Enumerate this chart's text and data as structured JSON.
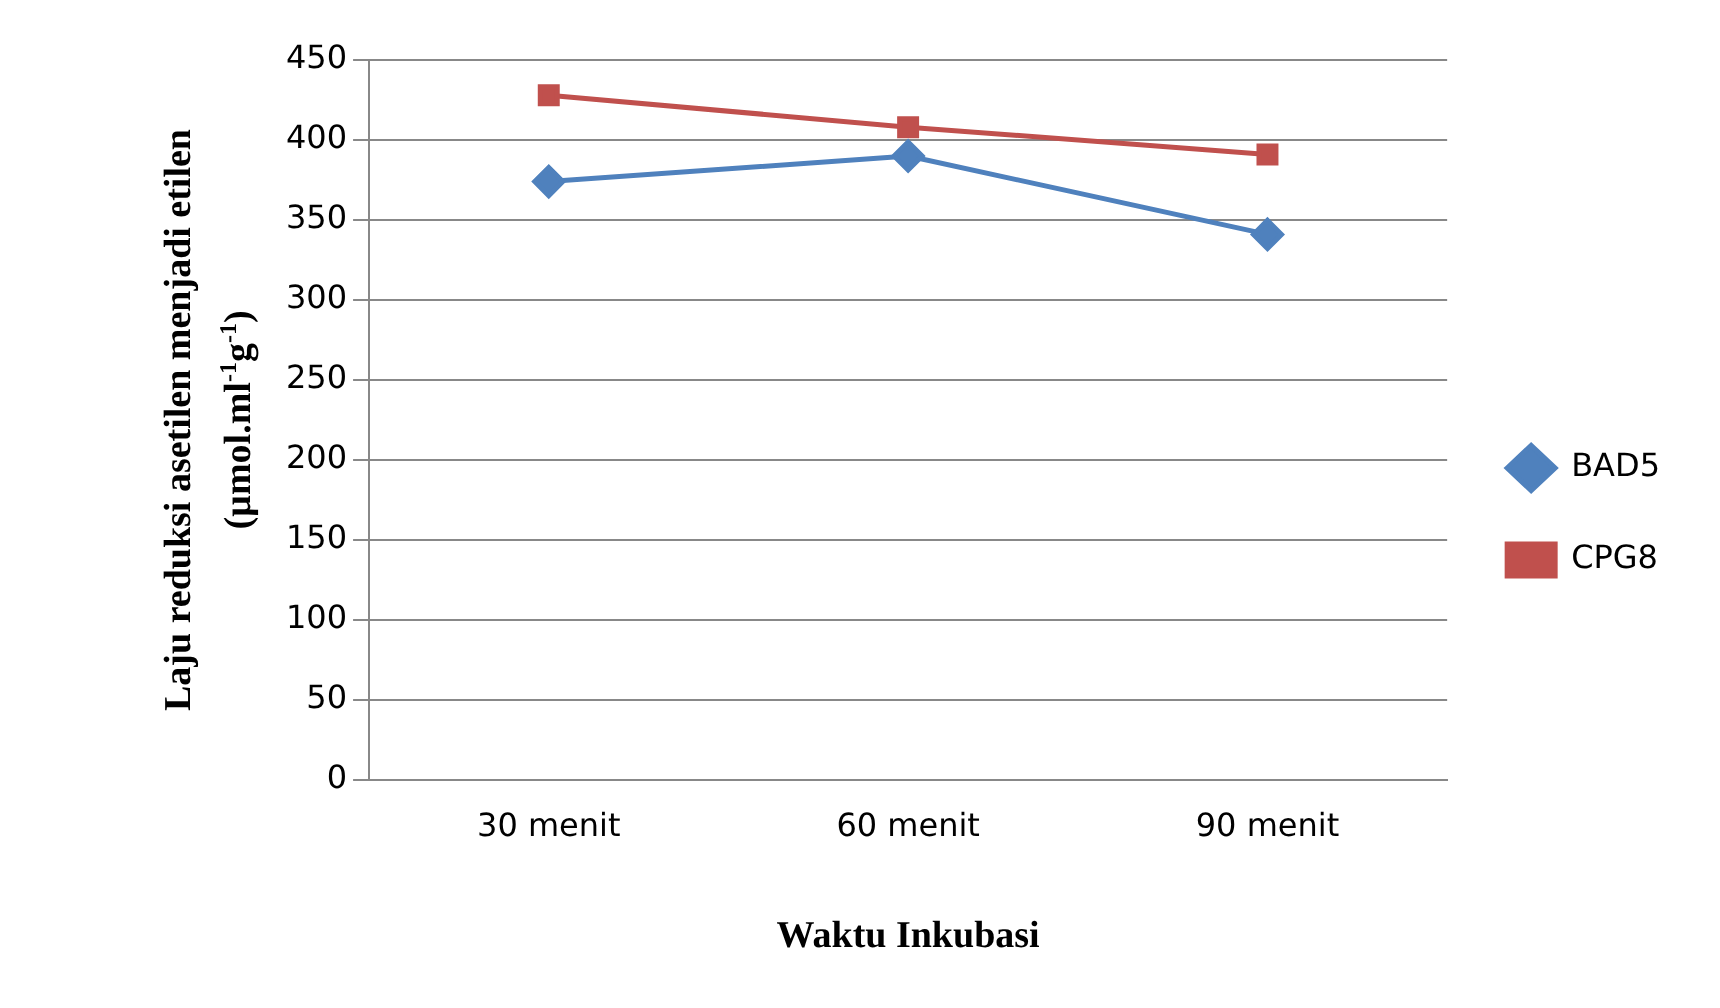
{
  "chart_data": {
    "type": "line",
    "xlabel": "Waktu Inkubasi",
    "ylabel": "Laju reduksi asetilen menjadi etilen (µmol.ml$^{-1}$g$^{-1}$)",
    "categories": [
      "30 menit",
      "60 menit",
      "90 menit"
    ],
    "series": [
      {
        "name": "BAD5",
        "color": "#4f81bd",
        "values": [
          374,
          390,
          341
        ],
        "marker": "diamond"
      },
      {
        "name": "CPG8",
        "color": "#c0504d",
        "values": [
          428,
          408,
          391
        ],
        "marker": "square"
      }
    ],
    "ylim": [
      0,
      450
    ],
    "yticks": [
      0,
      50,
      100,
      150,
      200,
      250,
      300,
      350,
      400,
      450
    ],
    "grid": "y",
    "legend": "right",
    "line_style": "solid"
  }
}
